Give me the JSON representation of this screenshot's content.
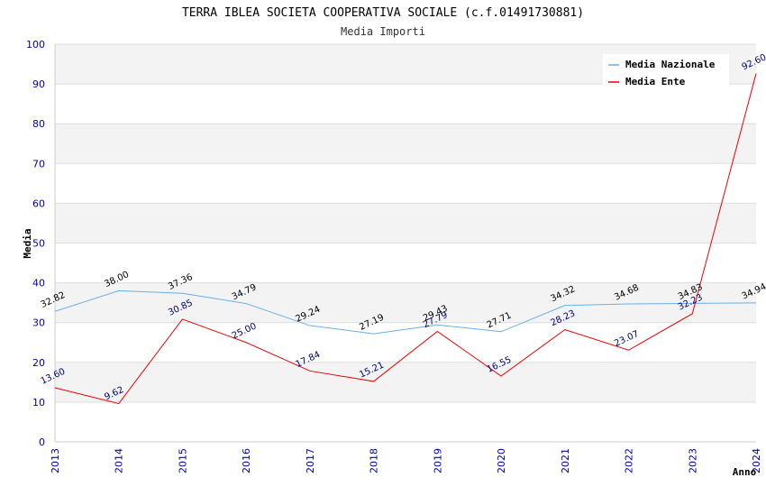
{
  "chart_data": {
    "type": "line",
    "title": "TERRA IBLEA SOCIETA COOPERATIVA SOCIALE (c.f.01491730881)",
    "subtitle": "Media Importi",
    "xlabel": "Anno",
    "ylabel": "Media",
    "ylim": [
      0,
      100
    ],
    "yticks": [
      0,
      10,
      20,
      30,
      40,
      50,
      60,
      70,
      80,
      90,
      100
    ],
    "grid": true,
    "legend_position": "top-right",
    "x": [
      "2013",
      "2014",
      "2015",
      "2016",
      "2017",
      "2018",
      "2019",
      "2020",
      "2021",
      "2022",
      "2023",
      "2024"
    ],
    "series": [
      {
        "name": "Media Nazionale",
        "color": "#6aaee8",
        "label_color": "#000000",
        "values": [
          32.82,
          38.0,
          37.36,
          34.79,
          29.24,
          27.19,
          29.43,
          27.71,
          34.32,
          34.68,
          34.83,
          34.94
        ],
        "labels": [
          "32.82",
          "38.00",
          "37.36",
          "34.79",
          "29.24",
          "27.19",
          "29.43",
          "27.71",
          "34.32",
          "34.68",
          "34.83",
          "34.94"
        ]
      },
      {
        "name": "Media Ente",
        "color": "#ee0000",
        "label_color": "#000080",
        "values": [
          13.6,
          9.62,
          30.85,
          25.0,
          17.84,
          15.21,
          27.79,
          16.55,
          28.23,
          23.07,
          32.23,
          92.6
        ],
        "labels": [
          "13.60",
          "9.62",
          "30.85",
          "25.00",
          "17.84",
          "15.21",
          "27.79",
          "16.55",
          "28.23",
          "23.07",
          "32.23",
          "92.60"
        ]
      }
    ]
  }
}
